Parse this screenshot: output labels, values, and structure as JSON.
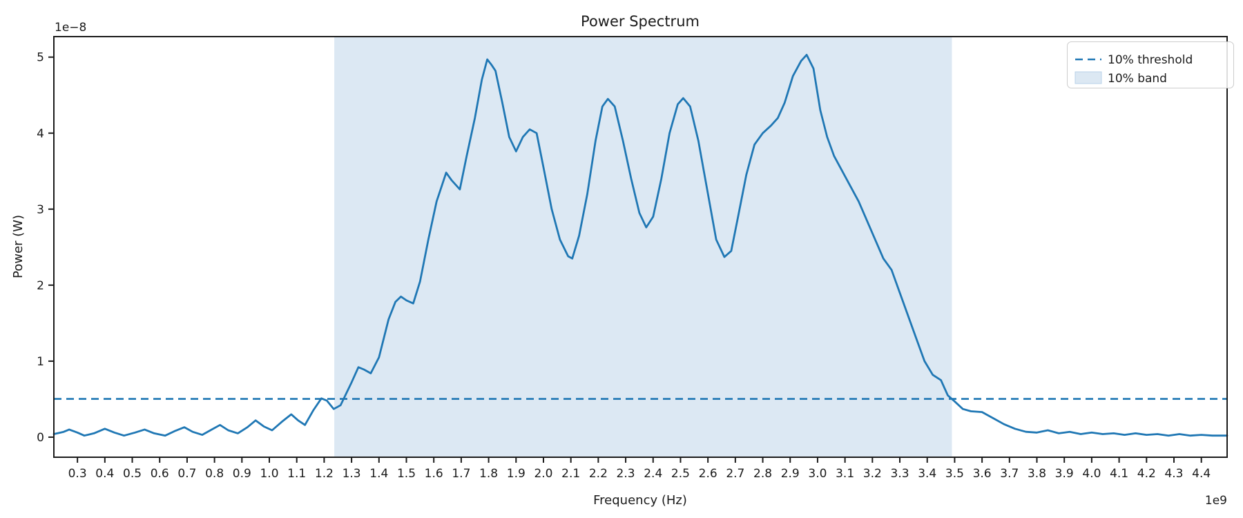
{
  "chart_data": {
    "type": "line",
    "title": "Power Spectrum",
    "xlabel": "Frequency (Hz)",
    "ylabel": "Power (W)",
    "x_offset_label": "1e9",
    "y_offset_label": "1e−8",
    "x_units": "GHz (axis values ×1e9 Hz)",
    "y_units": "×1e-8 W",
    "xlim": [
      0.214,
      4.494
    ],
    "ylim": [
      -0.264,
      5.27
    ],
    "xtick_labels": [
      "0.3",
      "0.4",
      "0.5",
      "0.6",
      "0.7",
      "0.8",
      "0.9",
      "1.0",
      "1.1",
      "1.2",
      "1.3",
      "1.4",
      "1.5",
      "1.6",
      "1.7",
      "1.8",
      "1.9",
      "2.0",
      "2.1",
      "2.2",
      "2.3",
      "2.4",
      "2.5",
      "2.6",
      "2.7",
      "2.8",
      "2.9",
      "3.0",
      "3.1",
      "3.2",
      "3.3",
      "3.4",
      "3.5",
      "3.6",
      "3.7",
      "3.8",
      "3.9",
      "4.0",
      "4.1",
      "4.2",
      "4.3",
      "4.4"
    ],
    "ytick_labels": [
      "0",
      "1",
      "2",
      "3",
      "4",
      "5"
    ],
    "grid": false,
    "legend_position": "upper right",
    "legend": [
      {
        "label": "10% threshold",
        "sample": "dashed-line"
      },
      {
        "label": "10% band",
        "sample": "patch"
      }
    ],
    "threshold_value": 0.503,
    "band": [
      1.237,
      3.49
    ],
    "colors": {
      "line": "#1f77b4",
      "threshold": "#1f77b4",
      "band_fill": "#dce8f3",
      "band_sample_edge": "#b9d2e8",
      "spine": "#1a1a1a",
      "legend_border": "#cccccc"
    },
    "series": [
      {
        "name": "power-spectrum",
        "x": [
          0.214,
          0.25,
          0.27,
          0.3,
          0.325,
          0.36,
          0.4,
          0.435,
          0.47,
          0.51,
          0.545,
          0.58,
          0.62,
          0.655,
          0.69,
          0.72,
          0.755,
          0.79,
          0.82,
          0.85,
          0.885,
          0.92,
          0.95,
          0.98,
          1.01,
          1.045,
          1.08,
          1.105,
          1.13,
          1.16,
          1.19,
          1.21,
          1.235,
          1.26,
          1.3,
          1.325,
          1.345,
          1.37,
          1.4,
          1.435,
          1.46,
          1.48,
          1.5,
          1.525,
          1.55,
          1.58,
          1.61,
          1.645,
          1.665,
          1.695,
          1.72,
          1.75,
          1.775,
          1.795,
          1.81,
          1.825,
          1.85,
          1.875,
          1.9,
          1.925,
          1.95,
          1.975,
          2.0,
          2.03,
          2.06,
          2.09,
          2.105,
          2.13,
          2.16,
          2.19,
          2.215,
          2.235,
          2.26,
          2.29,
          2.32,
          2.35,
          2.375,
          2.4,
          2.43,
          2.46,
          2.49,
          2.51,
          2.535,
          2.565,
          2.6,
          2.63,
          2.66,
          2.685,
          2.71,
          2.74,
          2.77,
          2.8,
          2.83,
          2.855,
          2.88,
          2.91,
          2.94,
          2.96,
          2.985,
          3.01,
          3.035,
          3.06,
          3.09,
          3.12,
          3.15,
          3.18,
          3.21,
          3.24,
          3.27,
          3.3,
          3.33,
          3.36,
          3.39,
          3.42,
          3.45,
          3.475,
          3.5,
          3.53,
          3.56,
          3.6,
          3.64,
          3.68,
          3.72,
          3.76,
          3.8,
          3.84,
          3.88,
          3.92,
          3.96,
          4.0,
          4.04,
          4.08,
          4.12,
          4.16,
          4.2,
          4.24,
          4.28,
          4.32,
          4.36,
          4.4,
          4.44,
          4.494
        ],
        "y": [
          0.04,
          0.07,
          0.1,
          0.06,
          0.02,
          0.05,
          0.11,
          0.06,
          0.02,
          0.06,
          0.1,
          0.05,
          0.02,
          0.08,
          0.13,
          0.07,
          0.03,
          0.1,
          0.16,
          0.09,
          0.05,
          0.13,
          0.22,
          0.14,
          0.09,
          0.2,
          0.3,
          0.22,
          0.16,
          0.35,
          0.51,
          0.48,
          0.37,
          0.42,
          0.72,
          0.92,
          0.89,
          0.84,
          1.05,
          1.55,
          1.78,
          1.85,
          1.8,
          1.76,
          2.05,
          2.6,
          3.1,
          3.48,
          3.38,
          3.26,
          3.7,
          4.2,
          4.7,
          4.97,
          4.9,
          4.82,
          4.4,
          3.95,
          3.76,
          3.95,
          4.05,
          4.0,
          3.55,
          3.0,
          2.6,
          2.38,
          2.35,
          2.65,
          3.2,
          3.9,
          4.35,
          4.45,
          4.35,
          3.9,
          3.4,
          2.95,
          2.76,
          2.9,
          3.4,
          4.0,
          4.38,
          4.46,
          4.35,
          3.9,
          3.2,
          2.6,
          2.37,
          2.45,
          2.9,
          3.45,
          3.85,
          4.0,
          4.1,
          4.2,
          4.4,
          4.75,
          4.95,
          5.03,
          4.85,
          4.3,
          3.95,
          3.7,
          3.5,
          3.3,
          3.1,
          2.85,
          2.6,
          2.35,
          2.2,
          1.9,
          1.6,
          1.3,
          1.0,
          0.82,
          0.75,
          0.55,
          0.47,
          0.37,
          0.34,
          0.33,
          0.25,
          0.17,
          0.11,
          0.07,
          0.06,
          0.09,
          0.05,
          0.07,
          0.04,
          0.06,
          0.04,
          0.05,
          0.03,
          0.05,
          0.03,
          0.04,
          0.02,
          0.04,
          0.02,
          0.03,
          0.02,
          0.02
        ]
      }
    ]
  }
}
